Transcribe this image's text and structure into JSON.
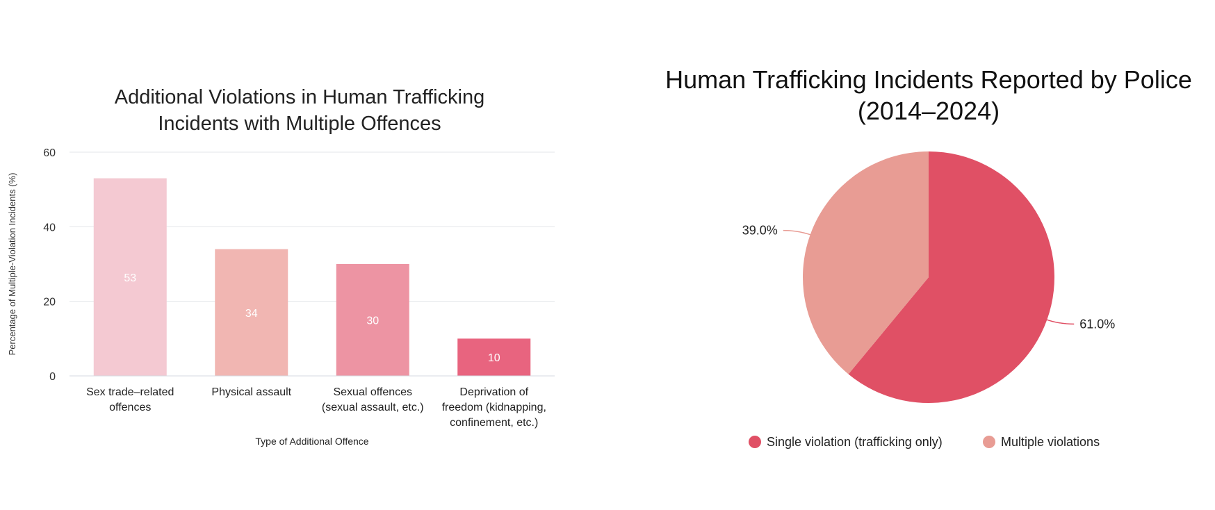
{
  "chart_data": [
    {
      "type": "bar",
      "title_lines": [
        "Additional Violations in Human Trafficking",
        "Incidents with Multiple Offences"
      ],
      "xlabel": "Type of Additional Offence",
      "ylabel": "Percentage of Multiple-Violation Incidents (%)",
      "ylim": [
        0,
        60
      ],
      "yticks": [
        "0",
        "20",
        "40",
        "60"
      ],
      "grid": true,
      "categories": [
        [
          "Sex trade–related",
          "offences"
        ],
        [
          "Physical assault"
        ],
        [
          "Sexual offences",
          "(sexual assault, etc.)"
        ],
        [
          "Deprivation of",
          "freedom (kidnapping,",
          "confinement, etc.)"
        ]
      ],
      "values": [
        53,
        34,
        30,
        10
      ],
      "data_labels": [
        "53",
        "34",
        "30",
        "10"
      ],
      "colors": [
        "#f4c9d2",
        "#f1b6b2",
        "#ed94a3",
        "#e8647f"
      ]
    },
    {
      "type": "pie",
      "title_lines": [
        "Human Trafficking Incidents Reported by Police",
        "(2014–2024)"
      ],
      "labels": [
        "Single violation (trafficking only)",
        "Multiple violations"
      ],
      "values": [
        61.0,
        39.0
      ],
      "data_labels": [
        "61.0%",
        "39.0%"
      ],
      "colors": [
        "#e05065",
        "#e89c94"
      ],
      "legend": "bottom"
    }
  ]
}
